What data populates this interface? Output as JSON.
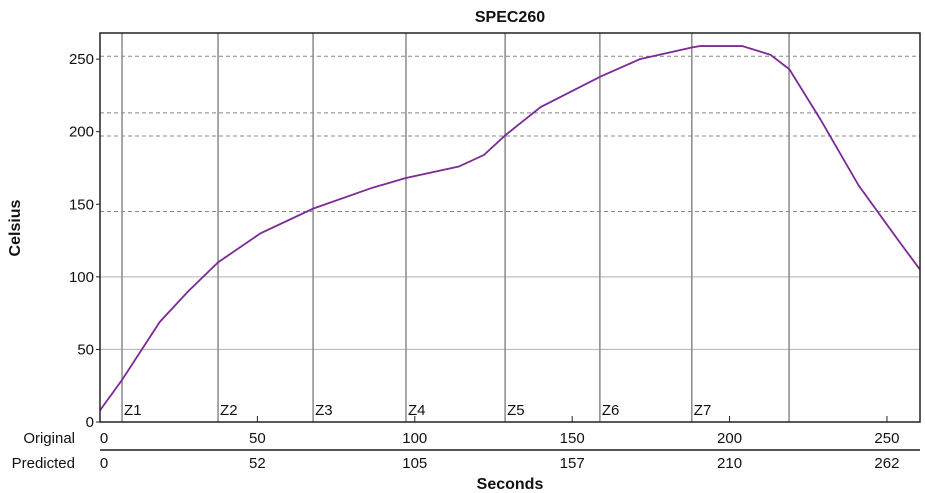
{
  "chart_data": {
    "type": "line",
    "title": "SPEC260",
    "xlabel": "Seconds",
    "ylabel": "Celsius",
    "xlim": [
      0,
      260.5
    ],
    "ylim": [
      0,
      268
    ],
    "y_ticks": [
      "0",
      "50",
      "100",
      "150",
      "200",
      "250"
    ],
    "y_tick_values": [
      0,
      50,
      100,
      150,
      200,
      250
    ],
    "x_axes": [
      {
        "label": "Original",
        "ticks": [
          "0",
          "50",
          "100",
          "150",
          "200",
          "250"
        ],
        "tick_values": [
          0,
          50,
          100,
          150,
          200,
          250
        ]
      },
      {
        "label": "Predicted",
        "ticks": [
          "0",
          "52",
          "105",
          "157",
          "210",
          "262"
        ],
        "tick_values": [
          0,
          50,
          100,
          150,
          200,
          250
        ]
      }
    ],
    "solid_gridlines_y": [
      50,
      100
    ],
    "dashed_reference_lines_y": [
      252,
      213,
      197,
      145
    ],
    "zones": [
      {
        "label": "Z1",
        "x": 7
      },
      {
        "label": "Z2",
        "x": 37.5
      },
      {
        "label": "Z3",
        "x": 67.7
      },
      {
        "label": "Z4",
        "x": 97.2
      },
      {
        "label": "Z5",
        "x": 128.7
      },
      {
        "label": "Z6",
        "x": 158.8
      },
      {
        "label": "Z7",
        "x": 188
      },
      {
        "label": "",
        "x": 218.9
      }
    ],
    "series": [
      {
        "color": "#7b2a96",
        "x": [
          0,
          7,
          19,
          28,
          37.5,
          51,
          67.7,
          86,
          97,
          114,
          122,
          129,
          140,
          159,
          171.5,
          188,
          190.6,
          204,
          213,
          219,
          229,
          241,
          254,
          260.5
        ],
        "y": [
          8,
          29,
          69,
          90,
          110,
          130,
          147,
          161,
          168,
          176,
          184,
          198,
          217,
          238,
          250,
          258,
          259,
          259,
          253,
          243,
          208,
          163,
          124,
          105
        ]
      }
    ]
  }
}
